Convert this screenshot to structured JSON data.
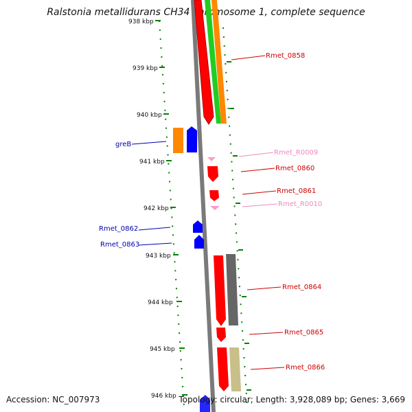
{
  "title": "Ralstonia metallidurans CH34 chromosome 1, complete sequence",
  "accession": "Accession: NC_007973",
  "topology": "Topology: circular; Length: 3,928,089 bp; Genes: 3,669",
  "colors": {
    "red": "#ff0000",
    "orange": "#ff8800",
    "green": "#22cc22",
    "blue": "#0000ff",
    "pink": "#ff99cc",
    "gray": "#666666",
    "khaki": "#c8bf8a",
    "tick": "#008000",
    "label_red": "#cc0000",
    "label_blue": "#0000aa",
    "label_pink": "#ee88bb"
  },
  "ticks": [
    "938 kbp",
    "939 kbp",
    "940 kbp",
    "941 kbp",
    "942 kbp",
    "943 kbp",
    "944 kbp",
    "945 kbp",
    "946 kbp"
  ],
  "labels": {
    "Rmet_0858": "Rmet_0858",
    "greB": "greB",
    "Rmet_R0009": "Rmet_R0009",
    "Rmet_0860": "Rmet_0860",
    "Rmet_0861": "Rmet_0861",
    "Rmet_R0010": "Rmet_R0010",
    "Rmet_0862": "Rmet_0862",
    "Rmet_0863": "Rmet_0863",
    "Rmet_0864": "Rmet_0864",
    "Rmet_0865": "Rmet_0865",
    "Rmet_0866": "Rmet_0866"
  }
}
